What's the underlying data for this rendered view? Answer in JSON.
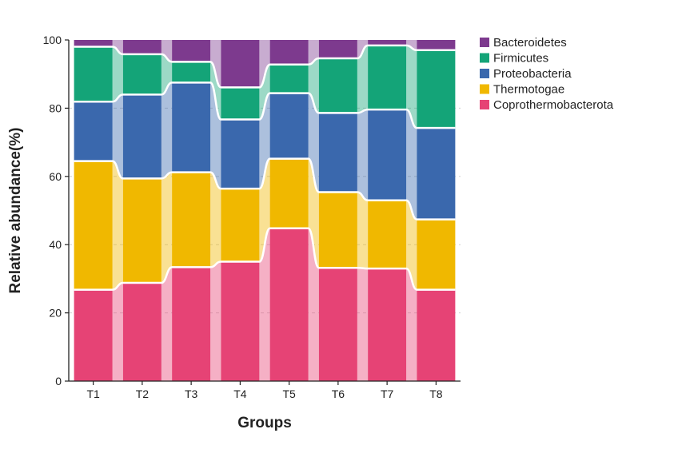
{
  "chart_data": {
    "type": "bar",
    "subtype": "stacked-100-with-flow-bands",
    "title": "",
    "xlabel": "Groups",
    "ylabel": "Relative abundance(%)",
    "ylim": [
      0,
      100
    ],
    "yticks": [
      0,
      20,
      40,
      60,
      80,
      100
    ],
    "grid": "horizontal-dashed",
    "legend_position": "right",
    "categories": [
      "T1",
      "T2",
      "T3",
      "T4",
      "T5",
      "T6",
      "T7",
      "T8"
    ],
    "series": [
      {
        "name": "Coprothermobacterota",
        "color": "#e64375",
        "values": [
          26.8,
          28.8,
          33.4,
          35.0,
          44.8,
          33.2,
          33.0,
          26.8
        ]
      },
      {
        "name": "Thermotogae",
        "color": "#f0b800",
        "values": [
          37.7,
          30.6,
          27.8,
          21.4,
          20.4,
          22.2,
          20.0,
          20.6
        ]
      },
      {
        "name": "Proteobacteria",
        "color": "#3a68ad",
        "values": [
          17.4,
          24.6,
          26.3,
          20.3,
          19.2,
          23.2,
          26.6,
          26.8
        ]
      },
      {
        "name": "Firmicutes",
        "color": "#14a478",
        "values": [
          16.1,
          11.8,
          6.1,
          9.4,
          8.4,
          16.0,
          18.8,
          22.8
        ]
      },
      {
        "name": "Bacteroidetes",
        "color": "#7d3a8e",
        "values": [
          2.0,
          4.2,
          6.4,
          13.9,
          7.2,
          5.4,
          1.6,
          3.0
        ]
      }
    ]
  }
}
